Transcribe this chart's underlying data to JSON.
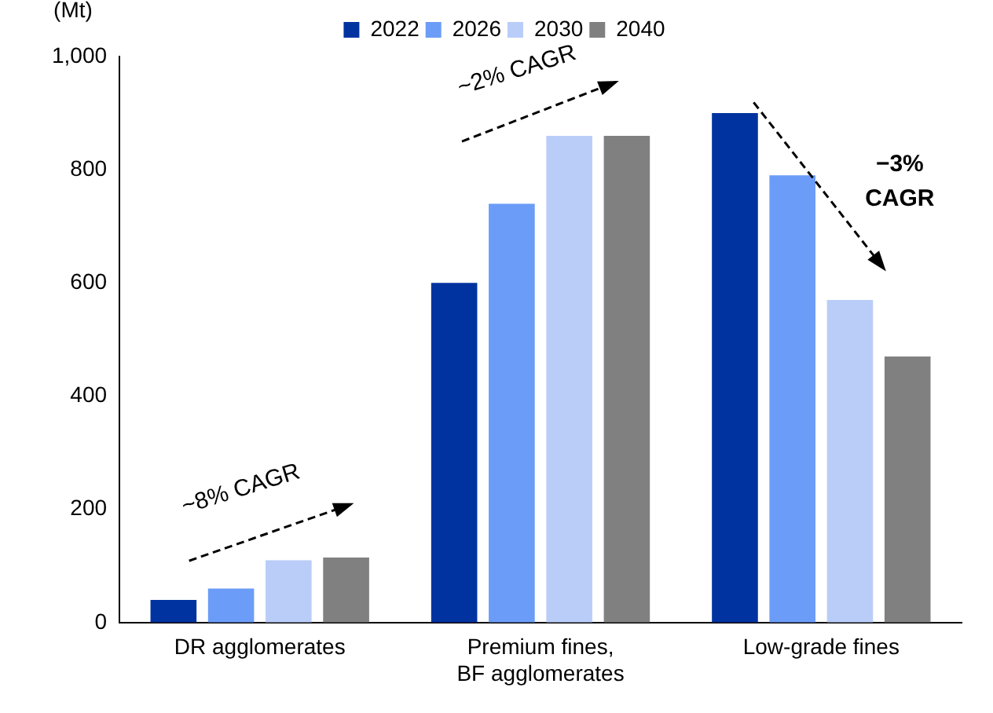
{
  "chart_data": {
    "type": "bar",
    "ylabel": "(Mt)",
    "categories": [
      "DR agglomerates",
      "Premium fines,\nBF agglomerates",
      "Low-grade fines"
    ],
    "series": [
      {
        "name": "2022",
        "color": "#0033a0",
        "values": [
          40,
          600,
          900
        ]
      },
      {
        "name": "2026",
        "color": "#6b9cf7",
        "values": [
          60,
          740,
          790
        ]
      },
      {
        "name": "2030",
        "color": "#b9cdf8",
        "values": [
          110,
          860,
          570
        ]
      },
      {
        "name": "2040",
        "color": "#808080",
        "values": [
          115,
          860,
          470
        ]
      }
    ],
    "ylim": [
      0,
      1000
    ],
    "yticks": [
      0,
      200,
      400,
      600,
      800,
      {
        "value": 1000,
        "label": "1,000"
      }
    ],
    "grid": false,
    "legend": "top",
    "annotations": [
      "~8% CAGR",
      "~2% CAGR",
      "−3% CAGR"
    ]
  }
}
